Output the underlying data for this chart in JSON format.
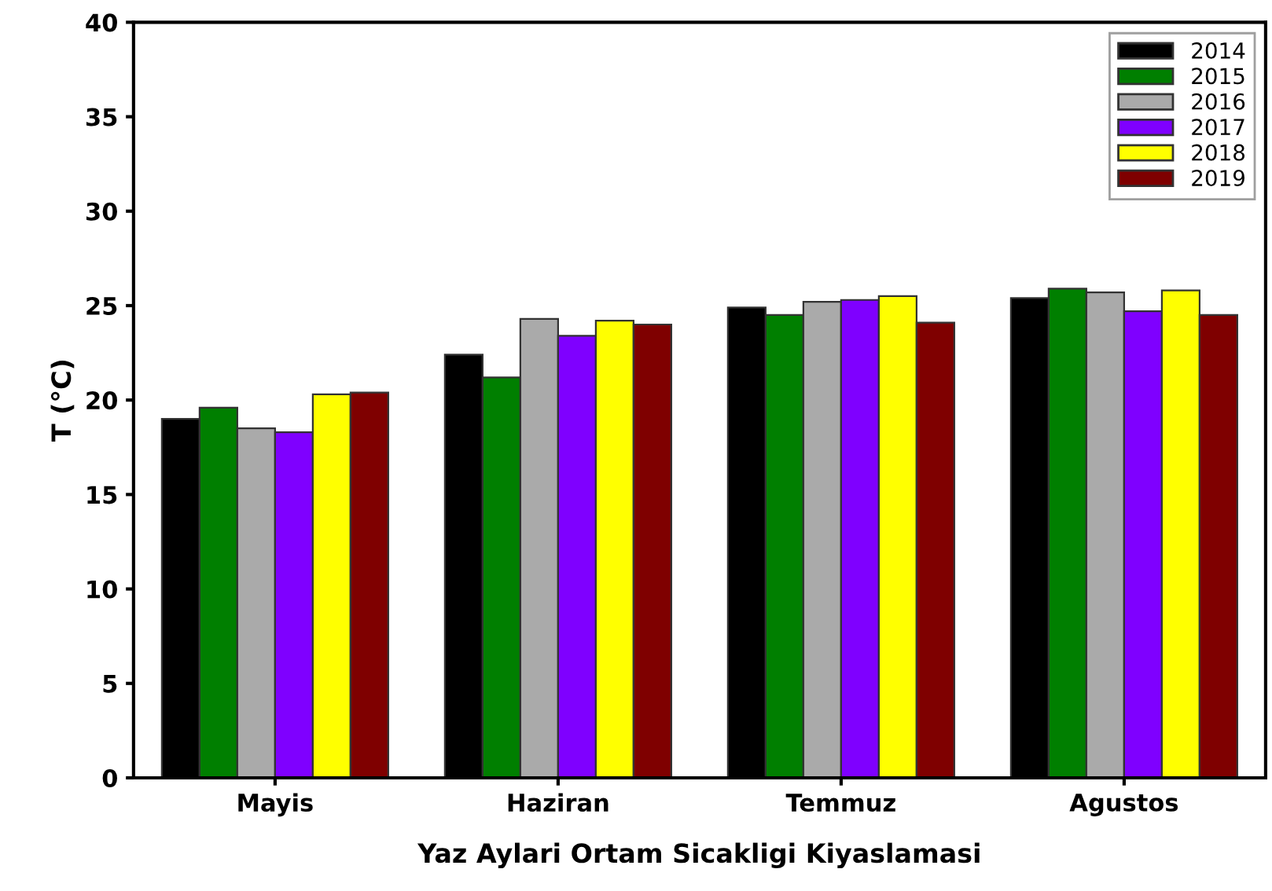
{
  "chart_data": {
    "type": "bar",
    "xlabel": "Yaz Aylari Ortam Sicakligi Kiyaslamasi",
    "ylabel": "T (°C)",
    "categories": [
      "Mayis",
      "Haziran",
      "Temmuz",
      "Agustos"
    ],
    "series": [
      {
        "name": "2014",
        "color": "#000000",
        "values": [
          19.0,
          22.4,
          24.9,
          25.4
        ]
      },
      {
        "name": "2015",
        "color": "#007f00",
        "values": [
          19.6,
          21.2,
          24.5,
          25.9
        ]
      },
      {
        "name": "2016",
        "color": "#aaaaaa",
        "values": [
          18.5,
          24.3,
          25.2,
          25.7
        ]
      },
      {
        "name": "2017",
        "color": "#7f00ff",
        "values": [
          18.3,
          23.4,
          25.3,
          24.7
        ]
      },
      {
        "name": "2018",
        "color": "#ffff00",
        "values": [
          20.3,
          24.2,
          25.5,
          25.8
        ]
      },
      {
        "name": "2019",
        "color": "#7f0000",
        "values": [
          20.4,
          24.0,
          24.1,
          24.5
        ]
      }
    ],
    "ylim": [
      0,
      40
    ],
    "yticks": [
      0,
      5,
      10,
      15,
      20,
      25,
      30,
      35,
      40
    ],
    "grid": false,
    "legend": "top right"
  }
}
